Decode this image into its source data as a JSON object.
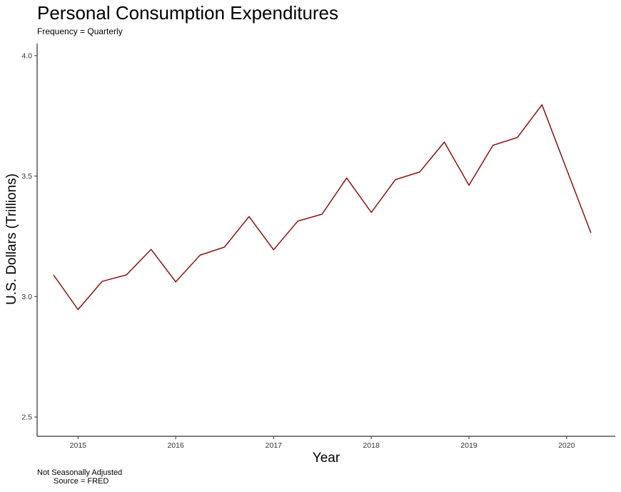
{
  "chart_data": {
    "type": "line",
    "title": "Personal Consumption Expenditures",
    "subtitle": "Frequency = Quarterly",
    "xlabel": "Year",
    "ylabel": "U.S. Dollars (Trillions)",
    "caption_line1": "Not Seasonally Adjusted",
    "caption_line2": "Source = FRED",
    "xlim": [
      "2014-08-01",
      "2020-07-01"
    ],
    "ylim": [
      2.42,
      4.05
    ],
    "x_ticks": [
      {
        "date": "2015-01-01",
        "label": "2015"
      },
      {
        "date": "2016-01-01",
        "label": "2016"
      },
      {
        "date": "2017-01-01",
        "label": "2017"
      },
      {
        "date": "2018-01-01",
        "label": "2018"
      },
      {
        "date": "2019-01-01",
        "label": "2019"
      },
      {
        "date": "2020-01-01",
        "label": "2020"
      }
    ],
    "y_ticks": [
      {
        "value": 2.5,
        "label": "2.5"
      },
      {
        "value": 3.0,
        "label": "3.0"
      },
      {
        "value": 3.5,
        "label": "3.5"
      },
      {
        "value": 4.0,
        "label": "4.0"
      }
    ],
    "grid": false,
    "series": [
      {
        "color": "#8b0000",
        "x": [
          "2014-10-01",
          "2015-01-01",
          "2015-04-01",
          "2015-07-01",
          "2015-10-01",
          "2016-01-01",
          "2016-04-01",
          "2016-07-01",
          "2016-10-01",
          "2017-01-01",
          "2017-04-01",
          "2017-07-01",
          "2017-10-01",
          "2018-01-01",
          "2018-04-01",
          "2018-07-01",
          "2018-10-01",
          "2019-01-01",
          "2019-04-01",
          "2019-07-01",
          "2019-10-01",
          "2020-01-01",
          "2020-04-01"
        ],
        "y": [
          3.09,
          2.946,
          3.063,
          3.09,
          3.196,
          3.061,
          3.172,
          3.205,
          3.332,
          3.194,
          3.313,
          3.342,
          3.492,
          3.349,
          3.485,
          3.517,
          3.641,
          3.462,
          3.628,
          3.66,
          3.796,
          3.528,
          3.264
        ]
      }
    ]
  }
}
